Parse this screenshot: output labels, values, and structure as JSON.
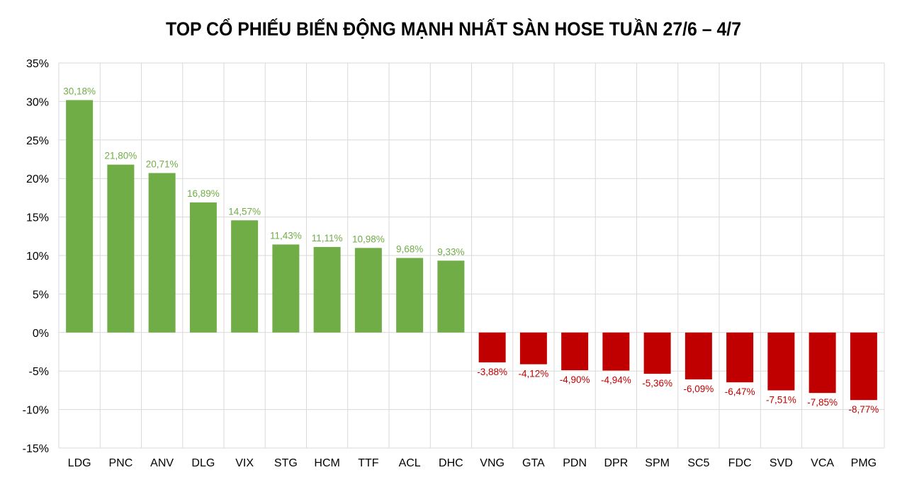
{
  "chart_data": {
    "type": "bar",
    "title": "TOP CỔ PHIẾU BIẾN ĐỘNG MẠNH NHẤT SÀN HOSE TUẦN 27/6 – 4/7",
    "categories": [
      "LDG",
      "PNC",
      "ANV",
      "DLG",
      "VIX",
      "STG",
      "HCM",
      "TTF",
      "ACL",
      "DHC",
      "VNG",
      "GTA",
      "PDN",
      "DPR",
      "SPM",
      "SC5",
      "FDC",
      "SVD",
      "VCA",
      "PMG"
    ],
    "values": [
      30.18,
      21.8,
      20.71,
      16.89,
      14.57,
      11.43,
      11.11,
      10.98,
      9.68,
      9.33,
      -3.88,
      -4.12,
      -4.9,
      -4.94,
      -5.36,
      -6.09,
      -6.47,
      -7.51,
      -7.85,
      -8.77
    ],
    "data_labels": [
      "30,18%",
      "21,80%",
      "20,71%",
      "16,89%",
      "14,57%",
      "11,43%",
      "11,11%",
      "10,98%",
      "9,68%",
      "9,33%",
      "-3,88%",
      "-4,12%",
      "-4,90%",
      "-4,94%",
      "-5,36%",
      "-6,09%",
      "-6,47%",
      "-7,51%",
      "-7,85%",
      "-8,77%"
    ],
    "yticks": [
      "35%",
      "30%",
      "25%",
      "20%",
      "15%",
      "10%",
      "5%",
      "0%",
      "-5%",
      "-10%",
      "-15%"
    ],
    "ylim": [
      -15,
      35
    ],
    "xlabel": "",
    "ylabel": "",
    "grid": true,
    "colors": {
      "positive": "#70ad47",
      "negative": "#c00000",
      "grid": "#d9d9d9"
    }
  }
}
